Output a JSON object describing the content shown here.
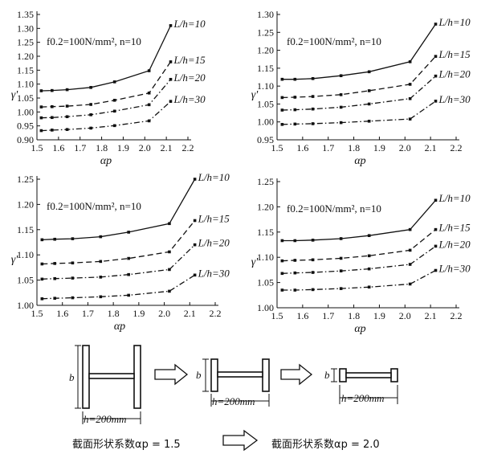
{
  "chart_data": [
    {
      "type": "line",
      "xlabel": "αp",
      "ylabel": "γ'",
      "annotation": "f0.2=100N/mm², n=10",
      "xlim": [
        1.5,
        2.2
      ],
      "ylim": [
        0.9,
        1.35
      ],
      "xticks": [
        "1.5",
        "1.6",
        "1.7",
        "1.8",
        "1.9",
        "2.0",
        "2.1",
        "2.2"
      ],
      "yticks": [
        "0.90",
        "0.95",
        "1.00",
        "1.05",
        "1.10",
        "1.15",
        "1.20",
        "1.25",
        "1.30",
        "1.35"
      ],
      "x": [
        1.52,
        1.57,
        1.64,
        1.75,
        1.86,
        2.02,
        2.12
      ],
      "series": [
        {
          "name": "L/h=10",
          "style": "solid",
          "values": [
            1.076,
            1.077,
            1.08,
            1.088,
            1.108,
            1.148,
            1.31
          ]
        },
        {
          "name": "L/h=15",
          "style": "dashed",
          "values": [
            1.018,
            1.019,
            1.021,
            1.027,
            1.042,
            1.068,
            1.18
          ]
        },
        {
          "name": "L/h=20",
          "style": "dash-dot",
          "values": [
            0.979,
            0.98,
            0.983,
            0.99,
            1.003,
            1.026,
            1.117
          ]
        },
        {
          "name": "L/h=30",
          "style": "dash-dot",
          "values": [
            0.933,
            0.935,
            0.937,
            0.942,
            0.951,
            0.968,
            1.038
          ]
        }
      ]
    },
    {
      "type": "line",
      "xlabel": "αp",
      "ylabel": "γ'",
      "annotation": "f0.2=100N/mm², n=10",
      "xlim": [
        1.5,
        2.2
      ],
      "ylim": [
        0.95,
        1.3
      ],
      "xticks": [
        "1.5",
        "1.6",
        "1.7",
        "1.8",
        "1.9",
        "2.0",
        "2.1",
        "2.2"
      ],
      "yticks": [
        "0.95",
        "1.00",
        "1.05",
        "1.10",
        "1.15",
        "1.20",
        "1.25",
        "1.30"
      ],
      "x": [
        1.52,
        1.57,
        1.64,
        1.75,
        1.86,
        2.02,
        2.12
      ],
      "series": [
        {
          "name": "L/h=10",
          "style": "solid",
          "values": [
            1.119,
            1.119,
            1.121,
            1.129,
            1.14,
            1.168,
            1.273
          ]
        },
        {
          "name": "L/h=15",
          "style": "dashed",
          "values": [
            1.068,
            1.069,
            1.071,
            1.076,
            1.087,
            1.105,
            1.183
          ]
        },
        {
          "name": "L/h=20",
          "style": "dash-dot",
          "values": [
            1.033,
            1.034,
            1.036,
            1.041,
            1.05,
            1.065,
            1.128
          ]
        },
        {
          "name": "L/h=30",
          "style": "dash-dot",
          "values": [
            0.993,
            0.994,
            0.995,
            0.998,
            1.002,
            1.008,
            1.058
          ]
        }
      ]
    },
    {
      "type": "line",
      "xlabel": "αp",
      "ylabel": "γ'",
      "annotation": "f0.2=100N/mm², n=10",
      "xlim": [
        1.5,
        2.2
      ],
      "ylim": [
        1.0,
        1.25
      ],
      "xticks": [
        "1.5",
        "1.6",
        "1.7",
        "1.8",
        "1.9",
        "2.0",
        "2.1",
        "2.2"
      ],
      "yticks": [
        "1.00",
        "1.05",
        "1.10",
        "1.15",
        "1.20",
        "1.25"
      ],
      "x": [
        1.52,
        1.57,
        1.64,
        1.75,
        1.86,
        2.02,
        2.12
      ],
      "series": [
        {
          "name": "L/h=10",
          "style": "solid",
          "values": [
            1.13,
            1.131,
            1.132,
            1.136,
            1.145,
            1.162,
            1.25
          ]
        },
        {
          "name": "L/h=15",
          "style": "dashed",
          "values": [
            1.082,
            1.083,
            1.084,
            1.087,
            1.093,
            1.106,
            1.168
          ]
        },
        {
          "name": "L/h=20",
          "style": "dash-dot",
          "values": [
            1.052,
            1.053,
            1.054,
            1.056,
            1.061,
            1.071,
            1.12
          ]
        },
        {
          "name": "L/h=30",
          "style": "dash-dot",
          "values": [
            1.013,
            1.014,
            1.015,
            1.017,
            1.02,
            1.028,
            1.06
          ]
        }
      ]
    },
    {
      "type": "line",
      "xlabel": "αp",
      "ylabel": "γ'",
      "annotation": "f0.2=100N/mm², n=10",
      "xlim": [
        1.5,
        2.2
      ],
      "ylim": [
        1.0,
        1.25
      ],
      "xticks": [
        "1.5",
        "1.6",
        "1.7",
        "1.8",
        "1.9",
        "2.0",
        "2.1",
        "2.2"
      ],
      "yticks": [
        "1.00",
        "1.05",
        "1.10",
        "1.15",
        "1.20",
        "1.25"
      ],
      "x": [
        1.52,
        1.57,
        1.64,
        1.75,
        1.86,
        2.02,
        2.12
      ],
      "series": [
        {
          "name": "L/h=10",
          "style": "solid",
          "values": [
            1.133,
            1.133,
            1.134,
            1.137,
            1.143,
            1.155,
            1.213
          ]
        },
        {
          "name": "L/h=15",
          "style": "dashed",
          "values": [
            1.093,
            1.094,
            1.095,
            1.098,
            1.103,
            1.114,
            1.155
          ]
        },
        {
          "name": "L/h=20",
          "style": "dash-dot",
          "values": [
            1.068,
            1.069,
            1.07,
            1.073,
            1.077,
            1.086,
            1.122
          ]
        },
        {
          "name": "L/h=30",
          "style": "dash-dot",
          "values": [
            1.035,
            1.035,
            1.036,
            1.038,
            1.041,
            1.047,
            1.074
          ]
        }
      ]
    }
  ],
  "diagram": {
    "section_width_label": "h=200mm",
    "section_depth_label": "b",
    "caption_left": "截面形状系数αp = 1.5",
    "caption_right": "截面形状系数αp = 2.0"
  }
}
